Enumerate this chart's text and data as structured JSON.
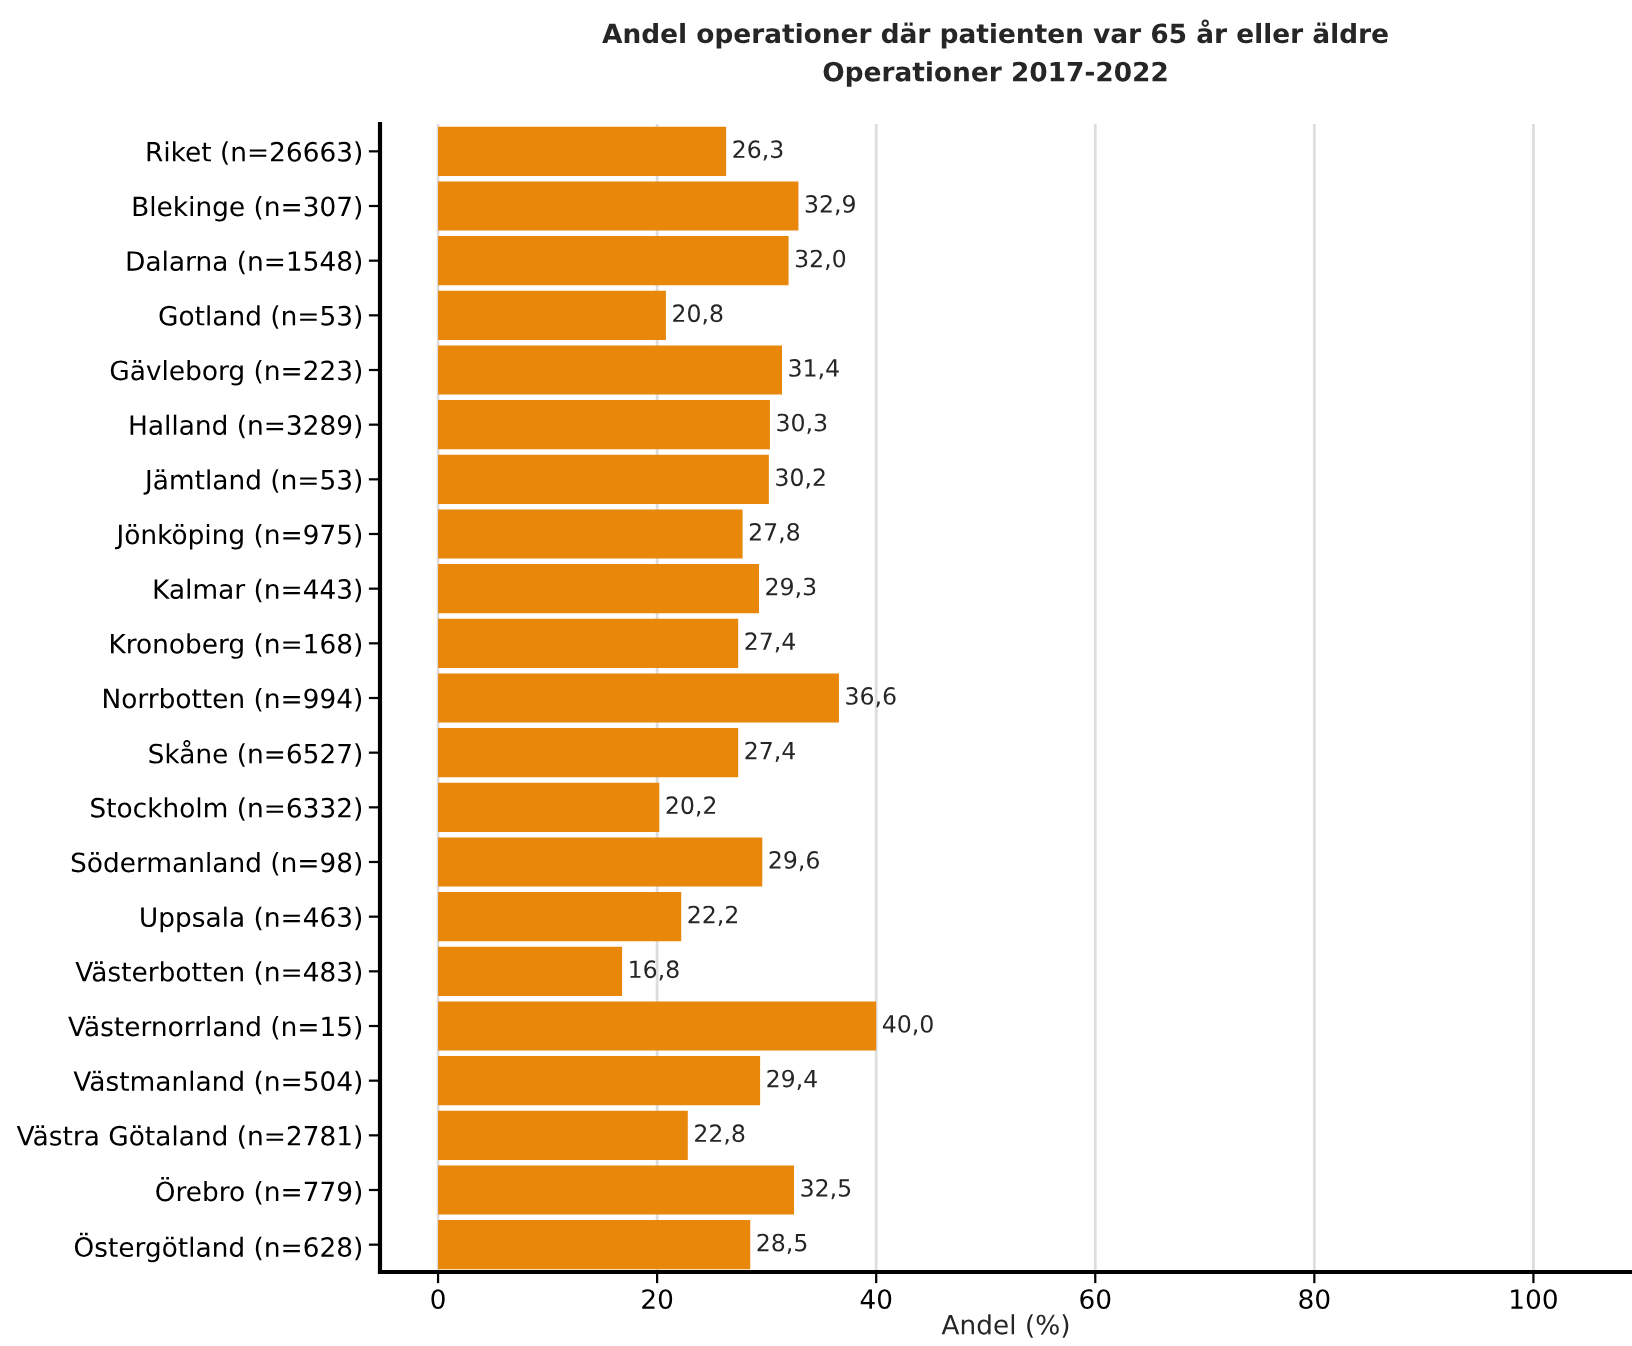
{
  "chart_data": {
    "type": "bar",
    "orientation": "horizontal",
    "title": "Andel operationer där patienten var 65 år eller äldre",
    "subtitle": "Operationer 2017-2022",
    "xlabel": "Andel (%)",
    "categories": [
      "Riket (n=26663)",
      "Blekinge (n=307)",
      "Dalarna (n=1548)",
      "Gotland (n=53)",
      "Gävleborg (n=223)",
      "Halland (n=3289)",
      "Jämtland (n=53)",
      "Jönköping (n=975)",
      "Kalmar (n=443)",
      "Kronoberg (n=168)",
      "Norrbotten (n=994)",
      "Skåne (n=6527)",
      "Stockholm (n=6332)",
      "Södermanland (n=98)",
      "Uppsala (n=463)",
      "Västerbotten (n=483)",
      "Västernorrland (n=15)",
      "Västmanland (n=504)",
      "Västra Götaland (n=2781)",
      "Örebro (n=779)",
      "Östergötland (n=628)"
    ],
    "series": [
      {
        "color": "#e8870a",
        "values": [
          26.3,
          32.9,
          32.0,
          20.8,
          31.4,
          30.3,
          30.2,
          27.8,
          29.3,
          27.4,
          36.6,
          27.4,
          20.2,
          29.6,
          22.2,
          16.8,
          40.0,
          29.4,
          22.8,
          32.5,
          28.5
        ],
        "value_labels": [
          "26,3",
          "32,9",
          "32,0",
          "20,8",
          "31,4",
          "30,3",
          "30,2",
          "27,8",
          "29,3",
          "27,4",
          "36,6",
          "27,4",
          "20,2",
          "29,6",
          "22,2",
          "16,8",
          "40,0",
          "29,4",
          "22,8",
          "32,5",
          "28,5"
        ]
      }
    ],
    "xlim": [
      -5.3,
      109
    ],
    "xticks": [
      0,
      20,
      40,
      60,
      80,
      100
    ],
    "grid": "x",
    "legend": false
  }
}
